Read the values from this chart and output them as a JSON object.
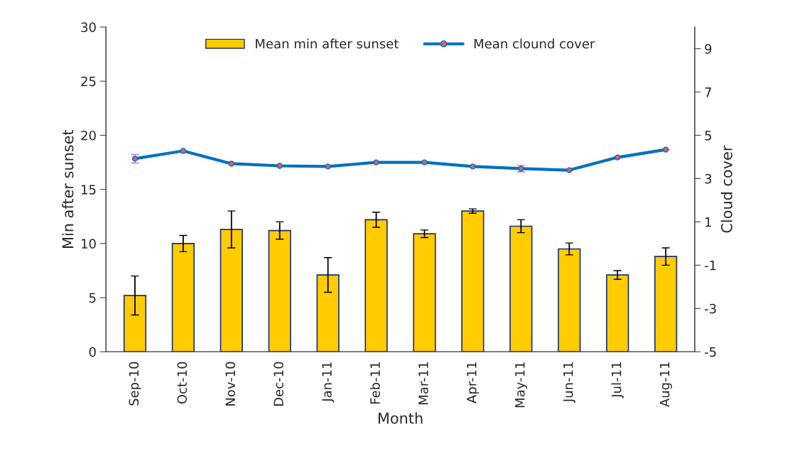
{
  "chart_data": {
    "type": "bar",
    "xlabel": "Month",
    "ylabel": "Min after sunset",
    "y2label": "Cloud cover",
    "categories": [
      "Sep-10",
      "Oct-10",
      "Nov-10",
      "Dec-10",
      "Jan-11",
      "Feb-11",
      "Mar-11",
      "Apr-11",
      "May-11",
      "Jun-11",
      "Jul-11",
      "Aug-11"
    ],
    "series": [
      {
        "name": "Mean min after sunset",
        "color": "#ffcc00",
        "values": [
          5.2,
          10.0,
          11.3,
          11.2,
          7.1,
          12.2,
          10.9,
          13.0,
          11.6,
          9.5,
          7.1,
          8.8
        ],
        "errors": [
          1.8,
          0.75,
          1.7,
          0.8,
          1.6,
          0.7,
          0.35,
          0.2,
          0.6,
          0.55,
          0.4,
          0.8
        ]
      },
      {
        "name": "Mean clound cover",
        "type": "line",
        "axis": "y2",
        "color": "#0070c0",
        "marker": "circle",
        "values": [
          3.92,
          4.28,
          3.69,
          3.59,
          3.56,
          3.75,
          3.75,
          3.56,
          3.46,
          3.39,
          3.98,
          4.34
        ],
        "errors": [
          0.2,
          null,
          null,
          null,
          null,
          null,
          null,
          null,
          0.15,
          null,
          null,
          null
        ]
      }
    ],
    "ylim": [
      0,
      30
    ],
    "yticks": [
      0,
      5,
      10,
      15,
      20,
      25,
      30
    ],
    "y2lim": [
      -5,
      10
    ],
    "y2ticks": [
      -5,
      -3,
      -1,
      1,
      3,
      5,
      7,
      9
    ],
    "grid": false,
    "legend": "top"
  }
}
